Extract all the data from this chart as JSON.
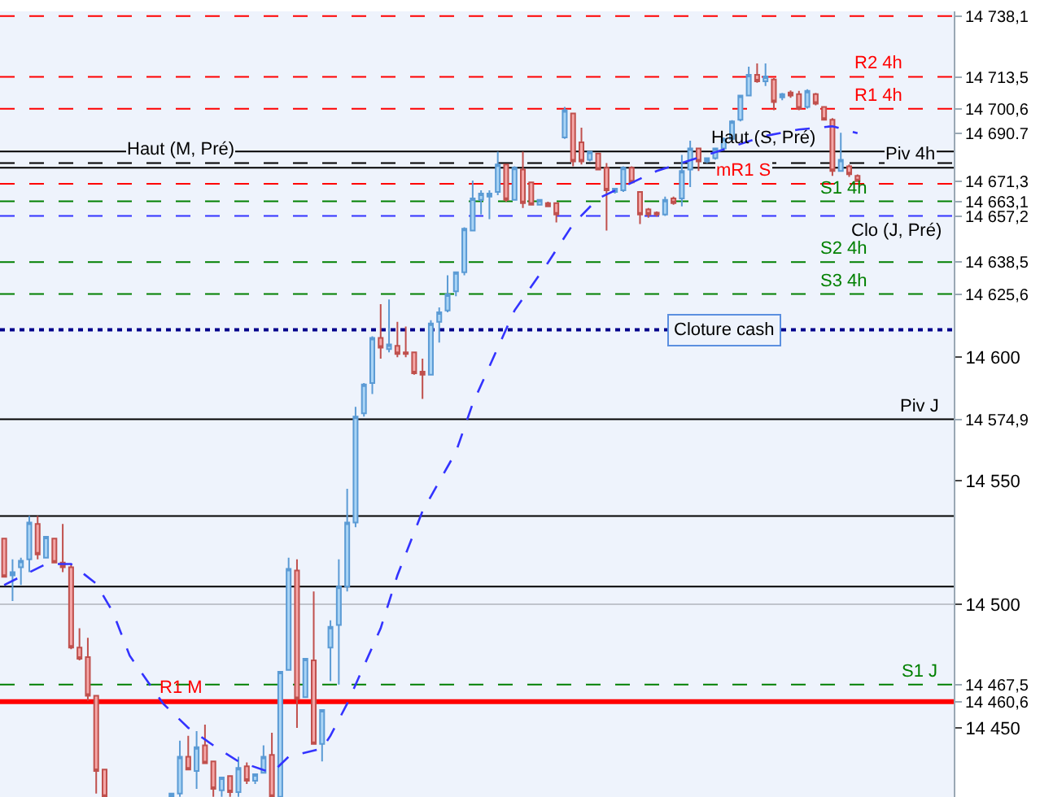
{
  "chart_data": {
    "type": "candlestick",
    "categories": [
      null,
      null,
      null,
      null,
      null,
      null,
      null,
      null,
      null,
      null,
      null,
      null,
      null,
      null,
      null,
      null,
      null,
      null,
      null,
      null,
      null,
      null,
      null,
      null,
      null,
      null,
      null,
      null,
      null,
      null,
      null,
      null,
      null,
      null,
      null,
      null,
      null,
      null,
      null,
      null,
      null,
      null,
      null,
      null,
      null,
      null,
      null,
      null,
      null,
      null,
      null,
      null,
      null,
      null,
      null,
      null,
      null,
      null,
      null,
      null,
      null,
      null,
      null,
      null,
      null,
      null,
      null,
      null,
      null,
      null,
      null,
      null,
      null,
      null,
      null,
      null,
      null,
      null,
      null,
      null,
      null,
      null,
      null,
      null,
      null,
      null,
      null,
      null,
      null,
      null,
      null,
      null,
      null,
      null,
      null,
      null,
      null,
      null,
      null,
      null,
      null,
      null,
      null,
      null,
      null,
      null,
      null,
      null,
      null,
      null,
      null,
      null,
      null,
      null
    ],
    "ohlc": [
      [
        14526.6,
        14526.6,
        14511.1,
        14511.1
      ],
      [
        14511.7,
        14518.2,
        14501.3,
        14513.0
      ],
      [
        14515.0,
        14518.9,
        14507.8,
        14517.6
      ],
      [
        14518.2,
        14535.7,
        14513.0,
        14533.1
      ],
      [
        14532.5,
        14535.7,
        14518.2,
        14520.2
      ],
      [
        14518.9,
        14527.3,
        14518.9,
        14527.3
      ],
      [
        14526.6,
        14526.6,
        14516.9,
        14516.9
      ],
      [
        14516.9,
        14532.5,
        14513.0,
        14515.0
      ],
      [
        14515.0,
        14516.3,
        14481.8,
        14482.5
      ],
      [
        14482.5,
        14490.3,
        14477.3,
        14478.0
      ],
      [
        14478.6,
        14486.4,
        14461.0,
        14463.0
      ],
      [
        14463.0,
        14463.0,
        14423.4,
        14432.5
      ],
      [
        14433.1,
        14433.1,
        14422.1,
        14422.1
      ],
      null,
      null,
      null,
      null,
      null,
      null,
      null,
      [
        14422.1,
        14423.4,
        14422.1,
        14423.4
      ],
      [
        14423.4,
        14444.8,
        14422.1,
        14438.3
      ],
      [
        14438.3,
        14446.8,
        14433.1,
        14433.1
      ],
      [
        14432.5,
        14448.7,
        14425.3,
        14442.2
      ],
      [
        14442.9,
        14451.3,
        14435.7,
        14435.7
      ],
      [
        14436.4,
        14436.4,
        14422.1,
        14425.3
      ],
      [
        14424.7,
        14430.0,
        14422.1,
        14429.9
      ],
      [
        14430.5,
        14430.5,
        14422.1,
        14424.0
      ],
      [
        14424.0,
        14438.3,
        14422.1,
        14433.8
      ],
      [
        14434.4,
        14436.0,
        14427.3,
        14428.6
      ],
      [
        14428.6,
        14431.2,
        14427.3,
        14431.2
      ],
      [
        14431.8,
        14442.9,
        14431.8,
        14438.3
      ],
      [
        14439.0,
        14448.0,
        14422.1,
        14422.1
      ],
      [
        14422.1,
        14472.7,
        14422.1,
        14472.7
      ],
      [
        14473.4,
        14518.9,
        14473.4,
        14514.3
      ],
      [
        14513.7,
        14518.2,
        14450.0,
        14461.7
      ],
      [
        14462.4,
        14478.0,
        14462.4,
        14478.0
      ],
      [
        14477.3,
        14505.2,
        14443.5,
        14443.5
      ],
      [
        14443.5,
        14457.2,
        14436.4,
        14457.2
      ],
      [
        14482.5,
        14493.5,
        14468.9,
        14490.9
      ],
      [
        14491.6,
        14518.2,
        14467.5,
        14507.2
      ],
      [
        14507.2,
        14546.8,
        14505.2,
        14533.1
      ],
      [
        14533.1,
        14579.9,
        14531.2,
        14576.0
      ],
      [
        14577.3,
        14589.6,
        14576.0,
        14589.0
      ],
      [
        14589.6,
        14608.5,
        14585.1,
        14607.8
      ],
      [
        14607.8,
        14621.5,
        14599.4,
        14603.9
      ],
      [
        14603.3,
        14623.4,
        14602.0,
        14605.2
      ],
      [
        14604.6,
        14614.3,
        14600.0,
        14601.3
      ],
      [
        14602.0,
        14612.4,
        14600.0,
        14601.3
      ],
      [
        14602.0,
        14602.0,
        14592.9,
        14593.5
      ],
      [
        14594.2,
        14599.4,
        14583.1,
        14592.9
      ],
      [
        14592.9,
        14615.0,
        14592.9,
        14613.7
      ],
      [
        14614.3,
        14620.2,
        14605.9,
        14618.2
      ],
      [
        14618.9,
        14633.2,
        14618.2,
        14625.4
      ],
      [
        14626.7,
        14634.4,
        14624.7,
        14634.4
      ],
      [
        14634.4,
        14652.6,
        14633.2,
        14652.0
      ],
      [
        14651.3,
        14671.5,
        14651.3,
        14664.3
      ],
      [
        14663.7,
        14667.6,
        14657.8,
        14666.3
      ],
      [
        14665.0,
        14667.6,
        14655.9,
        14666.3
      ],
      [
        14666.9,
        14683.2,
        14665.6,
        14678.0
      ],
      [
        14678.0,
        14678.0,
        14663.0,
        14663.7
      ],
      [
        14663.7,
        14677.3,
        14663.7,
        14676.7
      ],
      [
        14676.0,
        14683.2,
        14660.4,
        14662.4
      ],
      [
        14670.8,
        14671.0,
        14661.7,
        14661.7
      ],
      [
        14661.7,
        14663.7,
        14661.7,
        14663.7
      ],
      [
        14662.4,
        14663.0,
        14661.0,
        14661.1
      ],
      [
        14662.4,
        14662.4,
        14654.6,
        14657.8
      ],
      [
        14689.0,
        14701.3,
        14688.4,
        14700.0
      ],
      [
        14698.7,
        14698.7,
        14677.3,
        14679.3
      ],
      [
        14687.0,
        14692.9,
        14678.0,
        14679.3
      ],
      [
        14679.9,
        14683.2,
        14679.3,
        14683.2
      ],
      [
        14682.5,
        14682.5,
        14676.0,
        14676.0
      ],
      [
        14676.7,
        14678.6,
        14651.3,
        14667.6
      ],
      [
        14666.9,
        14668.2,
        14666.3,
        14668.2
      ],
      [
        14667.6,
        14677.3,
        14666.9,
        14676.7
      ],
      [
        14676.7,
        14677.3,
        14670.8,
        14670.8
      ],
      [
        14666.9,
        14666.9,
        14653.9,
        14657.8
      ],
      [
        14659.8,
        14660.4,
        14656.5,
        14657.8
      ],
      [
        14658.5,
        14659.0,
        14657.0,
        14657.8
      ],
      [
        14657.8,
        14665.0,
        14657.2,
        14663.7
      ],
      [
        14664.3,
        14665.0,
        14661.7,
        14662.4
      ],
      [
        14664.3,
        14681.9,
        14661.1,
        14675.4
      ],
      [
        14676.0,
        14687.7,
        14668.9,
        14684.5
      ],
      [
        14684.5,
        14684.5,
        14675.4,
        14679.3
      ],
      [
        14679.3,
        14680.6,
        14678.6,
        14680.6
      ],
      [
        14680.6,
        14684.5,
        14680.0,
        14684.5
      ],
      [
        14684.5,
        14689.0,
        14684.0,
        14688.4
      ],
      [
        14688.4,
        14696.0,
        14687.7,
        14695.5
      ],
      [
        14696.1,
        14706.0,
        14695.5,
        14705.9
      ],
      [
        14705.9,
        14717.6,
        14705.9,
        14714.3
      ],
      [
        14714.3,
        14718.9,
        14711.1,
        14711.7
      ],
      [
        14711.7,
        14718.9,
        14709.8,
        14713.7
      ],
      [
        14712.4,
        14713.0,
        14700.0,
        14703.3
      ],
      [
        14705.2,
        14707.0,
        14704.0,
        14706.5
      ],
      [
        14707.2,
        14708.0,
        14705.0,
        14705.9
      ],
      [
        14706.5,
        14707.8,
        14700.0,
        14700.7
      ],
      [
        14701.3,
        14708.5,
        14700.7,
        14707.8
      ],
      [
        14706.5,
        14707.0,
        14702.0,
        14702.6
      ],
      [
        14701.3,
        14701.3,
        14696.0,
        14696.1
      ],
      [
        14696.1,
        14696.8,
        14673.4,
        14675.4
      ],
      [
        14675.4,
        14690.9,
        14675.4,
        14679.9
      ],
      [
        14677.3,
        14678.0,
        14673.0,
        14674.1
      ],
      [
        14673.4,
        14674.0,
        14671.3,
        14671.3
      ],
      null,
      null,
      null,
      null,
      null,
      null,
      null,
      null,
      null,
      null,
      null
    ],
    "series": [
      {
        "type": "line",
        "color": "#3333ff",
        "line_style": "dashed",
        "values": [
          14507.8,
          null,
          null,
          null,
          null,
          14516.3,
          null,
          null,
          14516.3,
          null,
          null,
          14508.4,
          null,
          14496.8,
          null,
          14479.2,
          null,
          null,
          null,
          14459.8,
          null,
          null,
          14450.0,
          null,
          null,
          14442.9,
          null,
          null,
          14436.4,
          null,
          null,
          null,
          14431.8,
          null,
          14438.3,
          null,
          null,
          null,
          14441.6,
          14446.8,
          null,
          14459.8,
          null,
          null,
          null,
          14490.3,
          null,
          14511.7,
          null,
          null,
          14537.7,
          null,
          null,
          null,
          14561.7,
          null,
          14581.2,
          null,
          null,
          null,
          null,
          14618.9,
          null,
          null,
          null,
          14638.3,
          null,
          null,
          14653.9,
          null,
          null,
          14664.3,
          null,
          null,
          null,
          null,
          null,
          null,
          14675.4,
          null,
          null,
          null,
          null,
          null,
          14681.9,
          null,
          null,
          null,
          null,
          null,
          null,
          14689.6,
          null,
          null,
          null,
          14692.2,
          null,
          null,
          null,
          14693.5,
          null,
          null,
          14690.7,
          null,
          null,
          null,
          null,
          null,
          null,
          null,
          null,
          null,
          null,
          null
        ]
      }
    ],
    "ylim": [
      14422,
      14740
    ],
    "yticks": [
      {
        "value": 14450,
        "label": "14 450"
      },
      {
        "value": 14500,
        "label": "14 500"
      },
      {
        "value": 14550,
        "label": "14 550"
      },
      {
        "value": 14600,
        "label": "14 600"
      }
    ],
    "tick_labels": "y",
    "ref_lines": [
      {
        "axis": "y",
        "value": 14738.1,
        "label": null,
        "color": "#ff0000",
        "line_style": "dashed"
      },
      {
        "axis": "y",
        "value": 14713.5,
        "label": "R2 4h",
        "color": "#ff0000",
        "line_style": "dashed"
      },
      {
        "axis": "y",
        "value": 14700.6,
        "label": "R1 4h",
        "color": "#ff0000",
        "line_style": "dashed"
      },
      {
        "axis": "y",
        "value": 14683.3,
        "label": "Haut (S, Pré)",
        "color": "#000000",
        "line_style": "solid"
      },
      {
        "axis": "y",
        "value": 14678.6,
        "label": "Haut (M, Pré)",
        "color": "#000000",
        "line_style": "dashed"
      },
      {
        "axis": "y",
        "value": 14676.7,
        "label": "Piv 4h",
        "color": "#000000",
        "line_style": "solid"
      },
      {
        "axis": "y",
        "value": 14670.2,
        "label": "mR1 S",
        "color": "#ff0000",
        "line_style": "dashed"
      },
      {
        "axis": "y",
        "value": 14663.1,
        "label": "S1 4h",
        "color": "#008000",
        "line_style": "dashed"
      },
      {
        "axis": "y",
        "value": 14657.2,
        "label": "Clo (J, Pré)",
        "color": "#3333ff",
        "line_style": "dashed"
      },
      {
        "axis": "y",
        "value": 14638.5,
        "label": "S2 4h",
        "color": "#008000",
        "line_style": "dashed"
      },
      {
        "axis": "y",
        "value": 14625.6,
        "label": "S3 4h",
        "color": "#008000",
        "line_style": "dashed"
      },
      {
        "axis": "y",
        "value": 14611.1,
        "label": "Cloture cash",
        "color": "#00008b",
        "line_style": "dotted"
      },
      {
        "axis": "y",
        "value": 14574.9,
        "label": "Piv J",
        "color": "#000000",
        "line_style": "solid"
      },
      {
        "axis": "y",
        "value": 14535.7,
        "label": null,
        "color": "#000000",
        "line_style": "solid"
      },
      {
        "axis": "y",
        "value": 14507.2,
        "label": null,
        "color": "#000000",
        "line_style": "solid"
      },
      {
        "axis": "y",
        "value": 14500,
        "label": null,
        "color": "#c0c4cc",
        "line_style": "solid"
      },
      {
        "axis": "y",
        "value": 14467.5,
        "label": "S1 J",
        "color": "#008000",
        "line_style": "dashed"
      },
      {
        "axis": "y",
        "value": 14460.6,
        "label": "R1 M",
        "color": "#ff0000",
        "line_style": "solid"
      }
    ],
    "y2lim": [
      14422,
      14740
    ],
    "y2ticks": [
      {
        "value": 14738.1,
        "label": "14 738,1"
      },
      {
        "value": 14713.5,
        "label": "14 713,5"
      },
      {
        "value": 14700.6,
        "label": "14 700,6"
      },
      {
        "value": 14690.7,
        "label": "14 690.7"
      },
      {
        "value": 14671.3,
        "label": "14 671,3"
      },
      {
        "value": 14663.1,
        "label": "14 663,1"
      },
      {
        "value": 14657.2,
        "label": "14 657,2"
      },
      {
        "value": 14638.5,
        "label": "14 638,5"
      },
      {
        "value": 14625.6,
        "label": "14 625,6"
      },
      {
        "value": 14574.9,
        "label": "14 574,9"
      },
      {
        "value": 14467.5,
        "label": "14 467,5"
      },
      {
        "value": 14460.6,
        "label": "14 460,6"
      }
    ]
  }
}
